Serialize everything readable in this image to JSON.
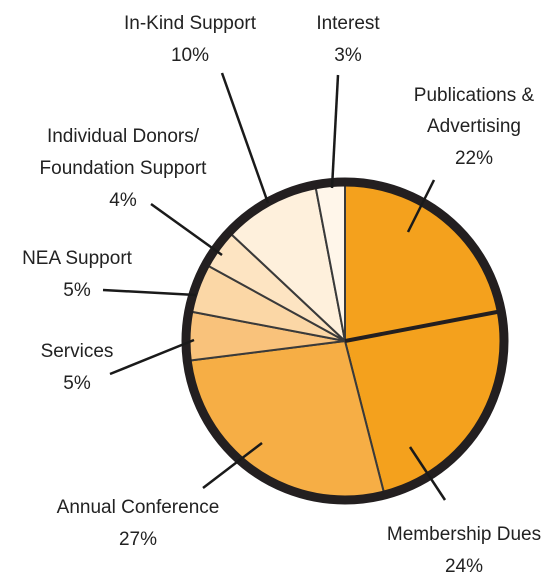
{
  "chart_data": {
    "type": "pie",
    "start_angle_deg": 0,
    "direction": "clockwise",
    "border_color": "#231f20",
    "divider_color": "#3a3a3a",
    "slices": [
      {
        "label": "Publications & Advertising",
        "label_lines": [
          "Publications &",
          "Advertising"
        ],
        "value_label": "22%",
        "value": 22,
        "color": "#f4a11d"
      },
      {
        "label": "Membership Dues",
        "label_lines": [
          "Membership Dues"
        ],
        "value_label": "24%",
        "value": 24,
        "color": "#f4a11d"
      },
      {
        "label": "Annual Conference",
        "label_lines": [
          "Annual Conference"
        ],
        "value_label": "27%",
        "value": 27,
        "color": "#f6ae45"
      },
      {
        "label": "Services",
        "label_lines": [
          "Services"
        ],
        "value_label": "5%",
        "value": 5,
        "color": "#f9c27b"
      },
      {
        "label": "NEA Support",
        "label_lines": [
          "NEA Support"
        ],
        "value_label": "5%",
        "value": 5,
        "color": "#fbd7a6"
      },
      {
        "label": "Individual Donors/ Foundation Support",
        "label_lines": [
          "Individual Donors/",
          "Foundation Support"
        ],
        "value_label": "4%",
        "value": 4,
        "color": "#fde4c2"
      },
      {
        "label": "In-Kind Support",
        "label_lines": [
          "In-Kind Support"
        ],
        "value_label": "10%",
        "value": 10,
        "color": "#fef0dc"
      },
      {
        "label": "Interest",
        "label_lines": [
          "Interest"
        ],
        "value_label": "3%",
        "value": 3,
        "color": "#fff6ea"
      }
    ]
  }
}
